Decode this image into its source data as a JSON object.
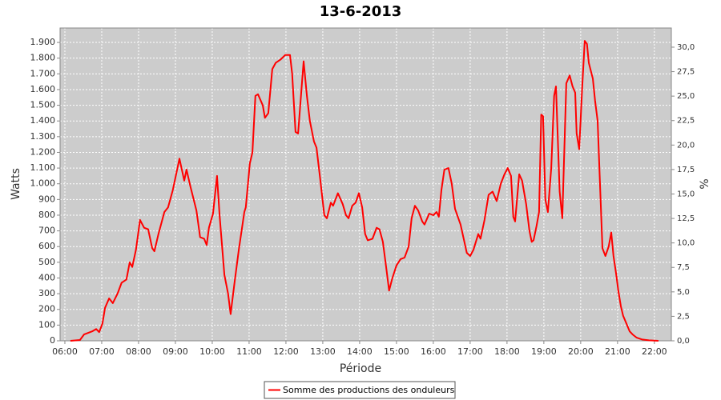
{
  "chart_data": {
    "type": "line",
    "title": "13-6-2013",
    "x_label": "Période",
    "y_label": "Watts",
    "y2_label": "%",
    "x": [
      6.15,
      6.41,
      6.52,
      6.74,
      6.85,
      6.93,
      7.02,
      7.09,
      7.2,
      7.3,
      7.43,
      7.54,
      7.67,
      7.76,
      7.83,
      7.93,
      8.04,
      8.15,
      8.26,
      8.37,
      8.43,
      8.54,
      8.7,
      8.8,
      8.93,
      9.11,
      9.24,
      9.3,
      9.41,
      9.57,
      9.67,
      9.78,
      9.85,
      9.91,
      10.02,
      10.13,
      10.2,
      10.33,
      10.43,
      10.5,
      10.61,
      10.72,
      10.87,
      10.91,
      11.02,
      11.09,
      11.17,
      11.24,
      11.37,
      11.43,
      11.52,
      11.63,
      11.72,
      11.85,
      11.98,
      12.11,
      12.17,
      12.26,
      12.33,
      12.48,
      12.57,
      12.65,
      12.76,
      12.83,
      12.93,
      13.04,
      13.11,
      13.22,
      13.28,
      13.41,
      13.54,
      13.63,
      13.7,
      13.8,
      13.89,
      13.98,
      14.07,
      14.15,
      14.22,
      14.35,
      14.46,
      14.54,
      14.63,
      14.72,
      14.8,
      14.89,
      15.0,
      15.11,
      15.22,
      15.33,
      15.41,
      15.5,
      15.59,
      15.7,
      15.76,
      15.89,
      16.0,
      16.09,
      16.15,
      16.22,
      16.3,
      16.41,
      16.5,
      16.59,
      16.74,
      16.91,
      17.0,
      17.09,
      17.22,
      17.28,
      17.39,
      17.5,
      17.61,
      17.72,
      17.83,
      17.93,
      18.02,
      18.11,
      18.17,
      18.22,
      18.33,
      18.41,
      18.52,
      18.61,
      18.67,
      18.72,
      18.8,
      18.87,
      18.93,
      18.98,
      19.04,
      19.11,
      19.2,
      19.28,
      19.33,
      19.43,
      19.5,
      19.61,
      19.7,
      19.78,
      19.85,
      19.89,
      19.96,
      20.04,
      20.11,
      20.17,
      20.22,
      20.33,
      20.39,
      20.46,
      20.52,
      20.59,
      20.67,
      20.76,
      20.83,
      20.89,
      20.96,
      21.02,
      21.09,
      21.15,
      21.24,
      21.33,
      21.41,
      21.52,
      21.67,
      21.85,
      22.11
    ],
    "series": [
      {
        "name": "Somme des productions des onduleurs",
        "color": "#ff0000",
        "values": [
          0,
          5,
          40,
          60,
          75,
          55,
          110,
          210,
          270,
          240,
          300,
          370,
          390,
          500,
          470,
          580,
          770,
          720,
          710,
          590,
          570,
          680,
          820,
          850,
          960,
          1160,
          1020,
          1090,
          980,
          830,
          660,
          650,
          610,
          720,
          810,
          1050,
          800,
          420,
          300,
          170,
          380,
          580,
          820,
          850,
          1130,
          1200,
          1560,
          1570,
          1500,
          1420,
          1450,
          1730,
          1770,
          1790,
          1820,
          1820,
          1700,
          1330,
          1320,
          1780,
          1560,
          1400,
          1270,
          1230,
          1030,
          800,
          780,
          880,
          860,
          940,
          870,
          800,
          780,
          860,
          880,
          940,
          850,
          680,
          640,
          650,
          720,
          710,
          630,
          470,
          320,
          400,
          480,
          520,
          530,
          600,
          780,
          860,
          830,
          760,
          740,
          810,
          800,
          820,
          790,
          960,
          1090,
          1100,
          1000,
          840,
          740,
          560,
          540,
          580,
          680,
          650,
          770,
          930,
          950,
          890,
          1000,
          1060,
          1100,
          1050,
          790,
          760,
          1060,
          1020,
          870,
          700,
          630,
          640,
          730,
          820,
          1440,
          1430,
          900,
          820,
          1100,
          1560,
          1620,
          950,
          780,
          1640,
          1690,
          1620,
          1580,
          1320,
          1220,
          1610,
          1910,
          1890,
          1770,
          1670,
          1530,
          1400,
          1020,
          590,
          540,
          600,
          690,
          540,
          430,
          320,
          220,
          160,
          110,
          60,
          40,
          20,
          8,
          3,
          0
        ]
      }
    ],
    "xlim": [
      5.87,
      22.46
    ],
    "xticks": [
      {
        "value": 6,
        "label": "06:00"
      },
      {
        "value": 7,
        "label": "07:00"
      },
      {
        "value": 8,
        "label": "08:00"
      },
      {
        "value": 9,
        "label": "09:00"
      },
      {
        "value": 10,
        "label": "10:00"
      },
      {
        "value": 11,
        "label": "11:00"
      },
      {
        "value": 12,
        "label": "12:00"
      },
      {
        "value": 13,
        "label": "13:00"
      },
      {
        "value": 14,
        "label": "14:00"
      },
      {
        "value": 15,
        "label": "15:00"
      },
      {
        "value": 16,
        "label": "16:00"
      },
      {
        "value": 17,
        "label": "17:00"
      },
      {
        "value": 18,
        "label": "18:00"
      },
      {
        "value": 19,
        "label": "19:00"
      },
      {
        "value": 20,
        "label": "20:00"
      },
      {
        "value": 21,
        "label": "21:00"
      },
      {
        "value": 22,
        "label": "22:00"
      }
    ],
    "ylim": [
      0,
      1992
    ],
    "yticks": [
      0,
      100,
      200,
      300,
      400,
      500,
      600,
      700,
      800,
      900,
      {
        "value": 1000,
        "label": "1.000"
      },
      {
        "value": 1100,
        "label": "1.100"
      },
      {
        "value": 1200,
        "label": "1.200"
      },
      {
        "value": 1300,
        "label": "1.300"
      },
      {
        "value": 1400,
        "label": "1.400"
      },
      {
        "value": 1500,
        "label": "1.500"
      },
      {
        "value": 1600,
        "label": "1.600"
      },
      {
        "value": 1700,
        "label": "1.700"
      },
      {
        "value": 1800,
        "label": "1.800"
      },
      {
        "value": 1900,
        "label": "1.900"
      }
    ],
    "y2lim": [
      0,
      31.96
    ],
    "y2ticks": [
      {
        "value": 0,
        "label": "0,0"
      },
      {
        "value": 2.5,
        "label": "2,5"
      },
      {
        "value": 5,
        "label": "5,0"
      },
      {
        "value": 7.5,
        "label": "7,5"
      },
      {
        "value": 10,
        "label": "10,0"
      },
      {
        "value": 12.5,
        "label": "12,5"
      },
      {
        "value": 15,
        "label": "15,0"
      },
      {
        "value": 17.5,
        "label": "17,5"
      },
      {
        "value": 20,
        "label": "20,0"
      },
      {
        "value": 22.5,
        "label": "22,5"
      },
      {
        "value": 25,
        "label": "25,0"
      },
      {
        "value": 27.5,
        "label": "27,5"
      },
      {
        "value": 30,
        "label": "30,0"
      }
    ],
    "grid": true,
    "plot_background": "#cccccc",
    "legend": "bottom"
  }
}
